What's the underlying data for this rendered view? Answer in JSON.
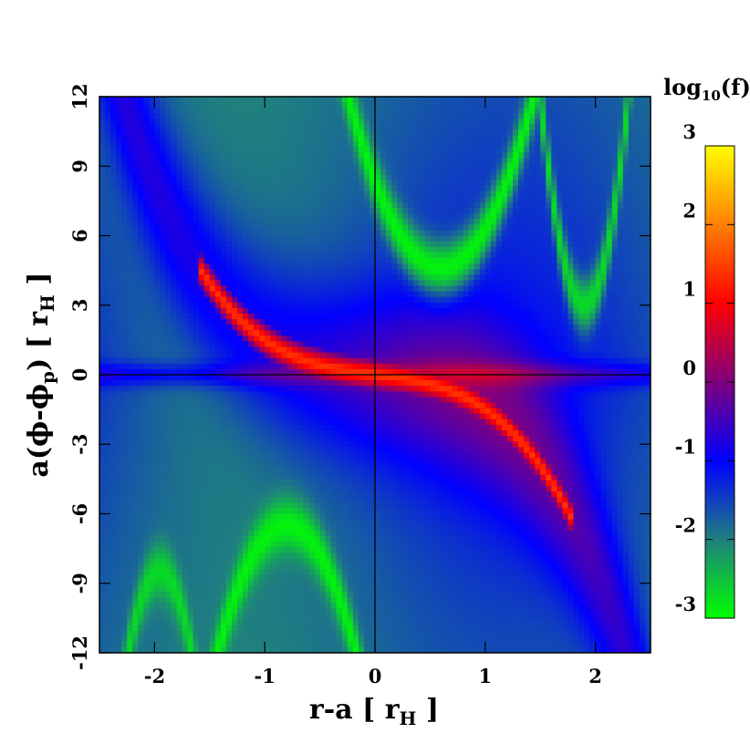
{
  "chart_data": {
    "type": "heatmap",
    "title": "",
    "xlabel": "r-a [ r",
    "xlabel_sub": "H",
    "xlabel_tail": " ]",
    "ylabel": "a(ϕ-ϕ",
    "ylabel_sub": "p",
    "ylabel_mid": ") [ r",
    "ylabel_sub2": "H",
    "ylabel_tail": " ]",
    "xlim": [
      -2.5,
      2.5
    ],
    "ylim": [
      -12,
      12
    ],
    "x_ticks": [
      -2,
      -1,
      0,
      1,
      2
    ],
    "x_tick_labels": [
      "-2",
      "-1",
      "0",
      "1",
      "2"
    ],
    "y_ticks": [
      -12,
      -9,
      -6,
      -3,
      0,
      3,
      6,
      9,
      12
    ],
    "y_tick_labels": [
      "-12",
      "-9",
      "-6",
      "-3",
      "0",
      "3",
      "6",
      "9",
      "12"
    ],
    "reference_lines": {
      "x": 0,
      "y": 0
    },
    "colorbar": {
      "title": "log",
      "title_sub": "10",
      "title_tail": "(f)",
      "range": [
        -3,
        3
      ],
      "ticks": [
        -3,
        -2,
        -1,
        0,
        1,
        2,
        3
      ],
      "tick_labels": [
        "-3",
        "-2",
        "-1",
        "0",
        "1",
        "2",
        "3"
      ],
      "palette": [
        {
          "v": -3.0,
          "color": "#00ff00"
        },
        {
          "v": -2.0,
          "color": "#1f7f7f"
        },
        {
          "v": -1.0,
          "color": "#0000ff"
        },
        {
          "v": 0.0,
          "color": "#7f007f"
        },
        {
          "v": 1.0,
          "color": "#ff0000"
        },
        {
          "v": 2.0,
          "color": "#ff7f00"
        },
        {
          "v": 3.0,
          "color": "#ffff00"
        }
      ]
    },
    "features": {
      "background_level": -1.5,
      "streamer_level": 1.0,
      "streamer_upper_left": {
        "x_from": -1.6,
        "x_to": -0.5,
        "y_at_start": 5.0
      },
      "streamer_lower_right": {
        "x_from": 0.5,
        "x_to": 1.8,
        "y_at_end": -8.0
      },
      "green_arcs": [
        {
          "vertex_x": 0.6,
          "vertex_y": 4.6,
          "direction": "up",
          "width": 0.8,
          "level": -2.9
        },
        {
          "vertex_x": -0.8,
          "vertex_y": -6.5,
          "direction": "down",
          "width": 0.6,
          "level": -2.9
        },
        {
          "vertex_x": 1.9,
          "vertex_y": 3.0,
          "direction": "up",
          "width": 0.15,
          "level": -2.7
        },
        {
          "vertex_x": -1.95,
          "vertex_y": -8.5,
          "direction": "down",
          "width": 0.2,
          "level": -2.7
        }
      ]
    }
  }
}
